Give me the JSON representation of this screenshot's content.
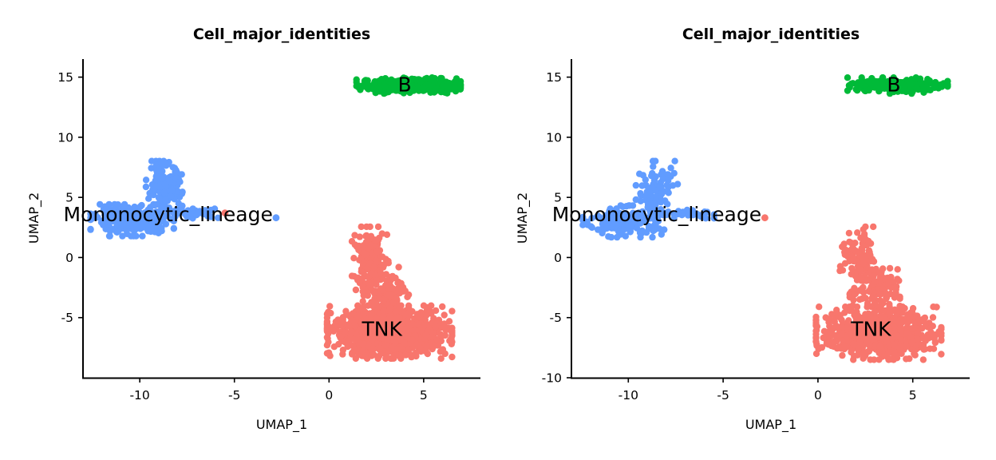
{
  "chart_data": [
    {
      "type": "scatter",
      "title": "Cell_major_identities",
      "xlabel": "UMAP_1",
      "ylabel": "UMAP_2",
      "xlim": [
        -13,
        8
      ],
      "ylim": [
        -10,
        16.5
      ],
      "xticks": [
        -10,
        -5,
        0,
        5
      ],
      "yticks": [
        -5,
        0,
        5,
        10,
        15
      ],
      "legend": "none",
      "series": [
        {
          "name": "B",
          "color": "#00BA38",
          "label_pos": [
            4.0,
            14.4
          ],
          "clusters": [
            {
              "cx": 4.2,
              "cy": 14.3,
              "sx": 1.25,
              "sy": 0.3,
              "n": 320
            }
          ],
          "points": []
        },
        {
          "name": "Mononocytic_lineage",
          "color": "#619CFF",
          "label_pos": [
            -8.5,
            3.6
          ],
          "clusters": [
            {
              "cx": -10.4,
              "cy": 3.1,
              "sx": 1.0,
              "sy": 0.6,
              "n": 280
            },
            {
              "cx": -8.7,
              "cy": 5.6,
              "sx": 0.45,
              "sy": 1.1,
              "n": 150
            },
            {
              "cx": -7.0,
              "cy": 3.7,
              "sx": 0.6,
              "sy": 0.2,
              "n": 40
            }
          ],
          "points": [
            [
              -2.8,
              3.3
            ]
          ]
        },
        {
          "name": "TNK",
          "color": "#F8766D",
          "label_pos": [
            2.8,
            -5.9
          ],
          "clusters": [
            {
              "cx": 3.2,
              "cy": -6.2,
              "sx": 1.5,
              "sy": 1.0,
              "n": 900
            },
            {
              "cx": 2.2,
              "cy": -0.3,
              "sx": 0.45,
              "sy": 1.3,
              "n": 140
            },
            {
              "cx": 3.0,
              "cy": -3.0,
              "sx": 0.55,
              "sy": 1.0,
              "n": 120
            }
          ],
          "points": [
            [
              -5.5,
              3.7
            ]
          ]
        }
      ]
    },
    {
      "type": "scatter",
      "title": "Cell_major_identities",
      "xlabel": "UMAP_1",
      "ylabel": "UMAP_2",
      "xlim": [
        -13,
        8
      ],
      "ylim": [
        -10,
        16.5
      ],
      "xticks": [
        -10,
        -5,
        0,
        5
      ],
      "yticks": [
        -10,
        -5,
        0,
        5,
        10,
        15
      ],
      "legend": "none",
      "series": [
        {
          "name": "B",
          "color": "#00BA38",
          "label_pos": [
            4.0,
            14.4
          ],
          "clusters": [
            {
              "cx": 4.2,
              "cy": 14.3,
              "sx": 1.2,
              "sy": 0.3,
              "n": 220
            }
          ],
          "points": []
        },
        {
          "name": "Mononocytic_lineage",
          "color": "#619CFF",
          "label_pos": [
            -8.5,
            3.6
          ],
          "clusters": [
            {
              "cx": -10.2,
              "cy": 3.0,
              "sx": 1.0,
              "sy": 0.6,
              "n": 180
            },
            {
              "cx": -8.5,
              "cy": 5.6,
              "sx": 0.5,
              "sy": 1.1,
              "n": 90
            },
            {
              "cx": -6.8,
              "cy": 3.7,
              "sx": 0.6,
              "sy": 0.2,
              "n": 25
            }
          ],
          "points": []
        },
        {
          "name": "TNK",
          "color": "#F8766D",
          "label_pos": [
            2.8,
            -5.9
          ],
          "clusters": [
            {
              "cx": 3.2,
              "cy": -6.3,
              "sx": 1.5,
              "sy": 1.0,
              "n": 650
            },
            {
              "cx": 2.2,
              "cy": -0.3,
              "sx": 0.5,
              "sy": 1.3,
              "n": 100
            },
            {
              "cx": 3.0,
              "cy": -3.0,
              "sx": 0.6,
              "sy": 1.0,
              "n": 90
            }
          ],
          "points": [
            [
              -2.8,
              3.3
            ]
          ]
        }
      ]
    }
  ]
}
